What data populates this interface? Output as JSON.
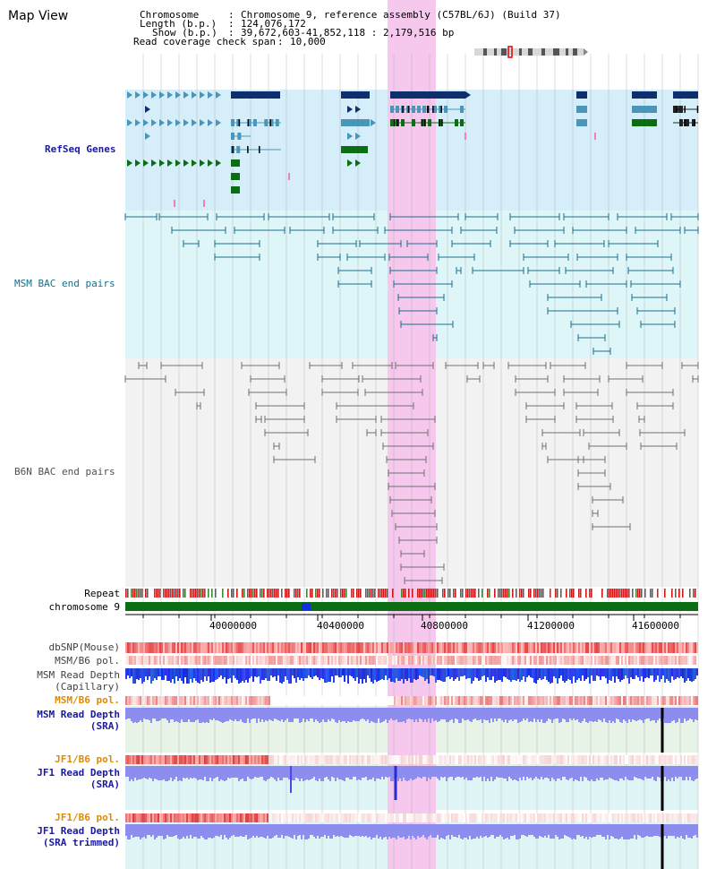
{
  "header": {
    "title": "Map View",
    "chromosome_label": "Chromosome",
    "chromosome_value": "Chromosome 9, reference assembly (C57BL/6J) (Build 37)",
    "length_label": "Length (b.p.)",
    "length_value": "124,076,172",
    "show_label": "Show (b.p.)",
    "show_value": "39,672,603-41,852,118 : 2,179,516 bp",
    "coverage_label": "Read coverage check span",
    "coverage_value": "10,000"
  },
  "tracks": {
    "refseq": "RefSeq Genes",
    "msm_bac": "MSM BAC end pairs",
    "b6n_bac": "B6N BAC end pairs",
    "repeat": "Repeat",
    "chromosome": "chromosome 9",
    "dbsnp": "dbSNP(Mouse)",
    "msm_b6_pol_1": "MSM/B6 pol.",
    "msm_depth_cap_1": "MSM Read Depth",
    "msm_depth_cap_2": "(Capillary)",
    "msm_b6_pol_2": "MSM/B6 pol.",
    "msm_depth_sra_1": "MSM Read Depth",
    "msm_depth_sra_2": "(SRA)",
    "jf1_b6_pol_1": "JF1/B6 pol.",
    "jf1_depth_sra_1": "JF1 Read Depth",
    "jf1_depth_sra_2": "(SRA)",
    "jf1_b6_pol_2": "JF1/B6 pol.",
    "jf1_depth_trim_1": "JF1 Read Depth",
    "jf1_depth_trim_2": "(SRA trimmed)"
  },
  "ruler": {
    "ticks": [
      "40000000",
      "40400000",
      "40800000",
      "41200000",
      "41600000"
    ]
  },
  "colors": {
    "highlight": "#f6c8ee",
    "refseq_bg": "#d6eef9",
    "msm_bg": "#def6f8",
    "b6n_bg": "#f2f2f2",
    "refseq_label": "#1a1aa0",
    "msm_label": "#107090",
    "b6n_label": "#505050",
    "pol_label": "#e08a00",
    "depth_label": "#1a1aa0"
  }
}
